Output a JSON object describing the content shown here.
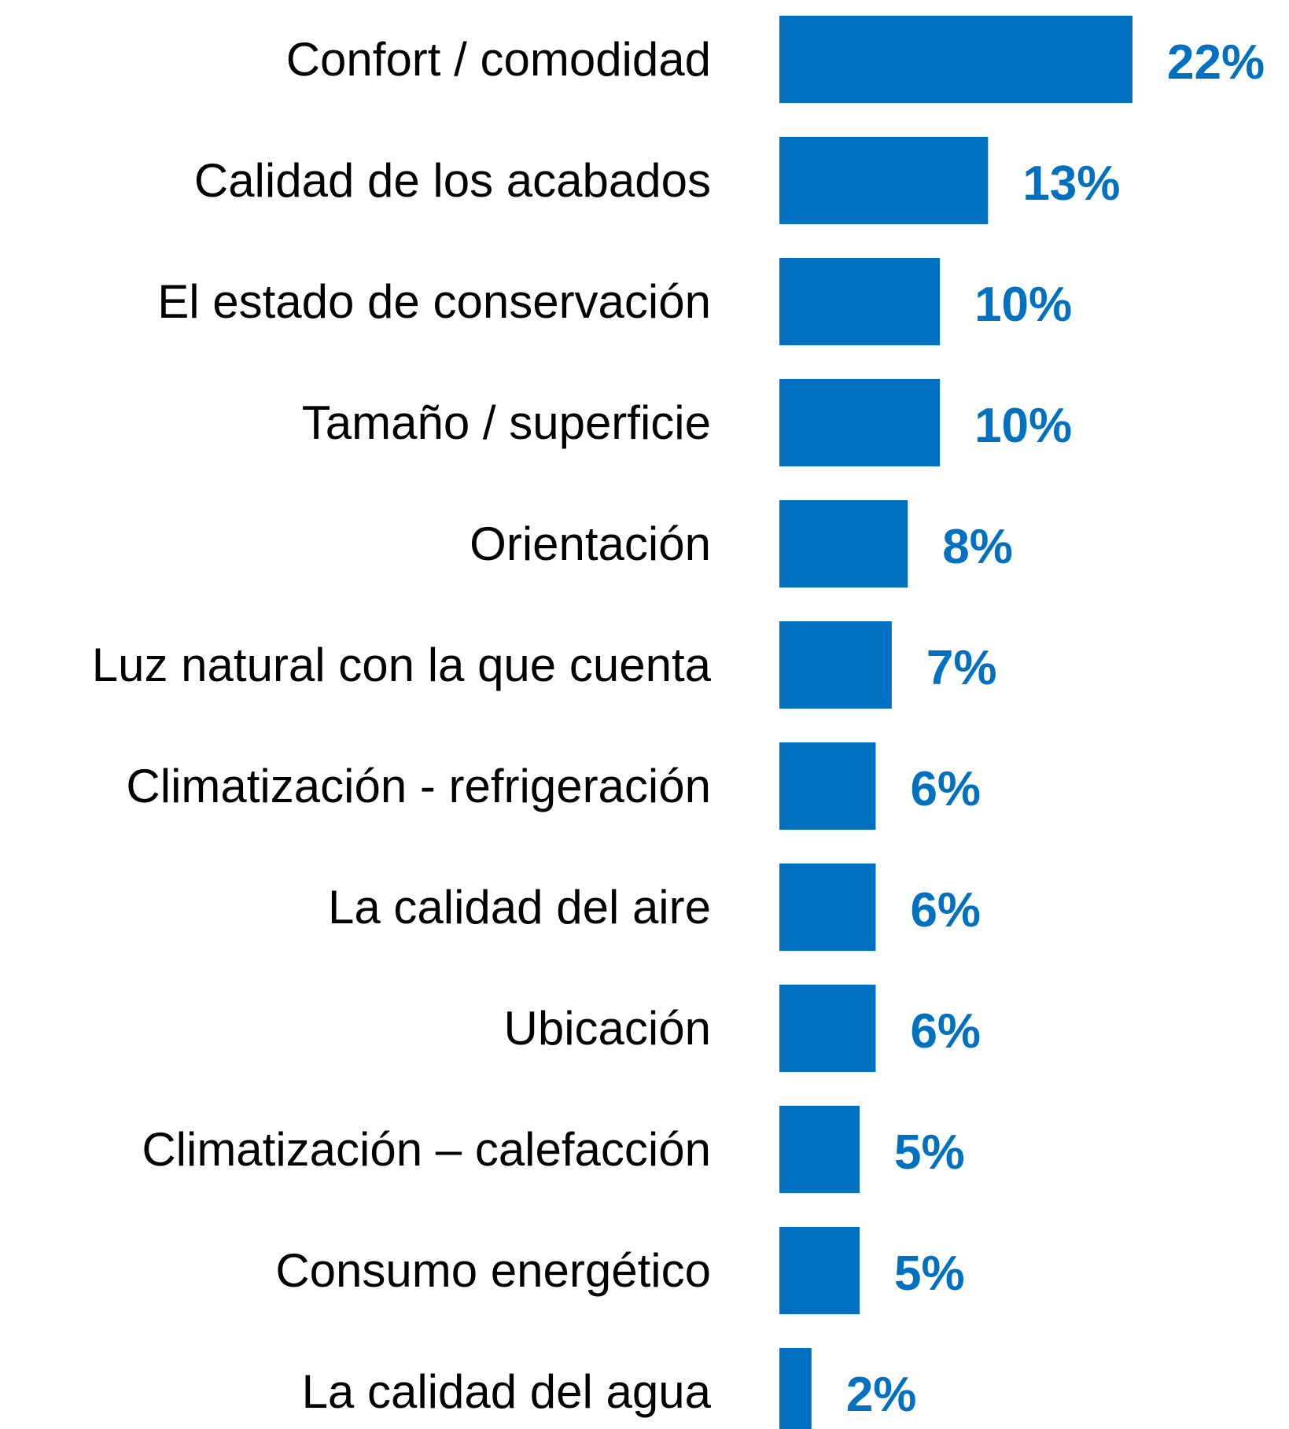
{
  "chart_data": {
    "type": "bar",
    "orientation": "horizontal",
    "color": "#0070c0",
    "categories": [
      "Confort / comodidad",
      "Calidad de los acabados",
      "El estado de conservación",
      "Tamaño / superficie",
      "Orientación",
      "Luz natural con la que cuenta",
      "Climatización - refrigeración",
      "La calidad del aire",
      "Ubicación",
      "Climatización – calefacción",
      "Consumo energético",
      "La calidad del agua"
    ],
    "values": [
      22,
      13,
      10,
      10,
      8,
      7,
      6,
      6,
      6,
      5,
      5,
      2
    ],
    "value_labels": [
      "22%",
      "13%",
      "10%",
      "10%",
      "8%",
      "7%",
      "6%",
      "6%",
      "6%",
      "5%",
      "5%",
      "2%"
    ]
  }
}
